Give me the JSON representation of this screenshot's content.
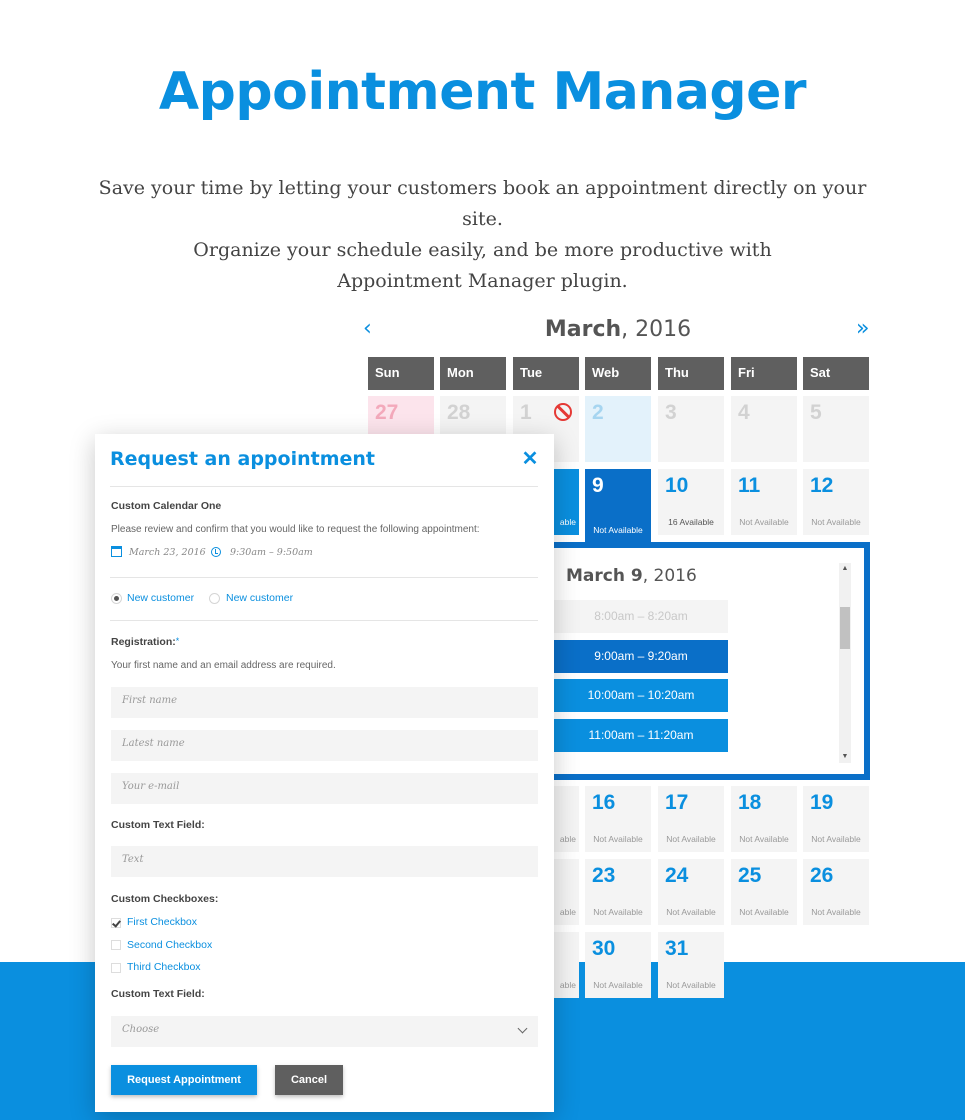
{
  "hero": {
    "title": "Appointment Manager",
    "subtitle_lines": [
      "Save your time by letting your customers book an appointment directly on your site.",
      "Organize your schedule easily, and be more productive with",
      "Appointment Manager plugin."
    ]
  },
  "calendar": {
    "month": "March",
    "year": ", 2016",
    "prev_icon": "chevron-left",
    "next_icon": "double-chevron-right",
    "weekdays": [
      "Sun",
      "Mon",
      "Tue",
      "Web",
      "Thu",
      "Fri",
      "Sat"
    ],
    "row1": [
      "27",
      "28",
      "1",
      "2",
      "3",
      "4",
      "5"
    ],
    "row2": {
      "d9": "9",
      "d9_status": "Not Available",
      "d8_status": "able",
      "d10": "10",
      "d10_status": "16 Available",
      "d11": "11",
      "d11_status": "Not Available",
      "d12": "12",
      "d12_status": "Not Available"
    },
    "row4": {
      "partial_status": "able",
      "days": [
        "16",
        "17",
        "18",
        "19"
      ],
      "statuses": [
        "Not Available",
        "Not Available",
        "Not Available",
        "Not Available"
      ]
    },
    "row5": {
      "partial_status": "able",
      "days": [
        "23",
        "24",
        "25",
        "26"
      ],
      "statuses": [
        "Not Available",
        "Not Available",
        "Not Available",
        "Not Available"
      ]
    },
    "row6": {
      "partial_status": "able",
      "days": [
        "30",
        "31"
      ],
      "statuses": [
        "Not Available",
        "Not Available"
      ]
    },
    "day_panel": {
      "month": "March 9",
      "year": ", 2016",
      "slots": [
        "8:00am – 8:20am",
        "9:00am – 9:20am",
        "10:00am – 10:20am",
        "11:00am – 11:20am"
      ]
    }
  },
  "modal": {
    "title": "Request an appointment",
    "calendar_name": "Custom Calendar One",
    "confirm_text": "Please review and confirm that you would like to request the following appointment:",
    "date": "March 23, 2016",
    "time": "9:30am – 9:50am",
    "customer_options": [
      "New customer",
      "New customer"
    ],
    "registration_label": "Registration:",
    "registration_star": "*",
    "registration_note": "Your first name and an email address are required.",
    "first_name_placeholder": "First name",
    "last_name_placeholder": "Latest name",
    "email_placeholder": "Your e-mail",
    "custom_text_label": "Custom Text Field:",
    "text_placeholder": "Text",
    "checkboxes_label": "Custom Checkboxes:",
    "checkboxes": [
      "First Checkbox",
      "Second Checkbox",
      "Third Checkbox"
    ],
    "custom_text_label_2": "Custom Text Field:",
    "select_placeholder": "Choose",
    "submit_label": "Request Appointment",
    "cancel_label": "Cancel",
    "close_icon": "close-icon"
  },
  "colors": {
    "accent": "#0a8fdf",
    "accent_dark": "#0a6fc8",
    "header_gray": "#5f5f5f"
  }
}
